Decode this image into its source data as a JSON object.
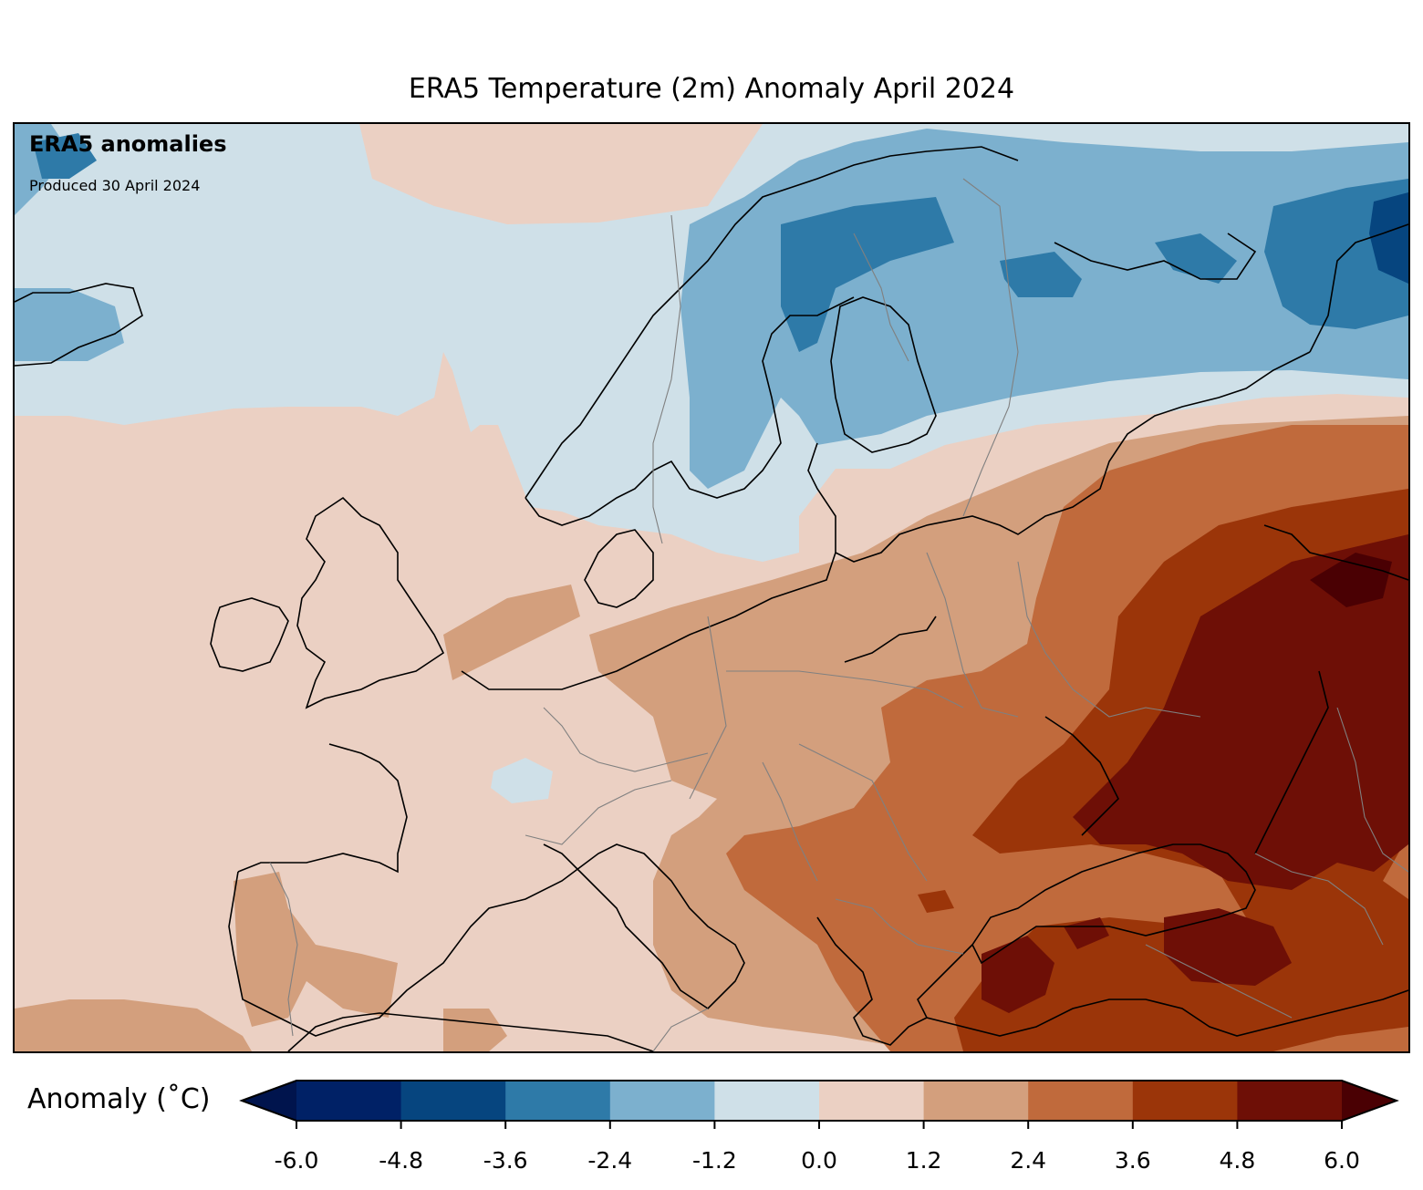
{
  "title": "ERA5 Temperature (2m) Anomaly April 2024",
  "map": {
    "brand": "ERA5 anomalies",
    "produced": "Produced 30 April 2024",
    "region": "Europe"
  },
  "colorbar": {
    "label": "Anomaly (˚C)",
    "ticks": [
      "-6.0",
      "-4.8",
      "-3.6",
      "-2.4",
      "-1.2",
      "0.0",
      "1.2",
      "2.4",
      "3.6",
      "4.8",
      "6.0"
    ],
    "colors": [
      "#002166",
      "#06457f",
      "#2e7aa8",
      "#7cb0ce",
      "#cfe0e8",
      "#ebd0c3",
      "#d39f7d",
      "#c06a3c",
      "#9b3509",
      "#6e0f06"
    ],
    "under_color": "#00144d",
    "over_color": "#4a0003"
  }
}
